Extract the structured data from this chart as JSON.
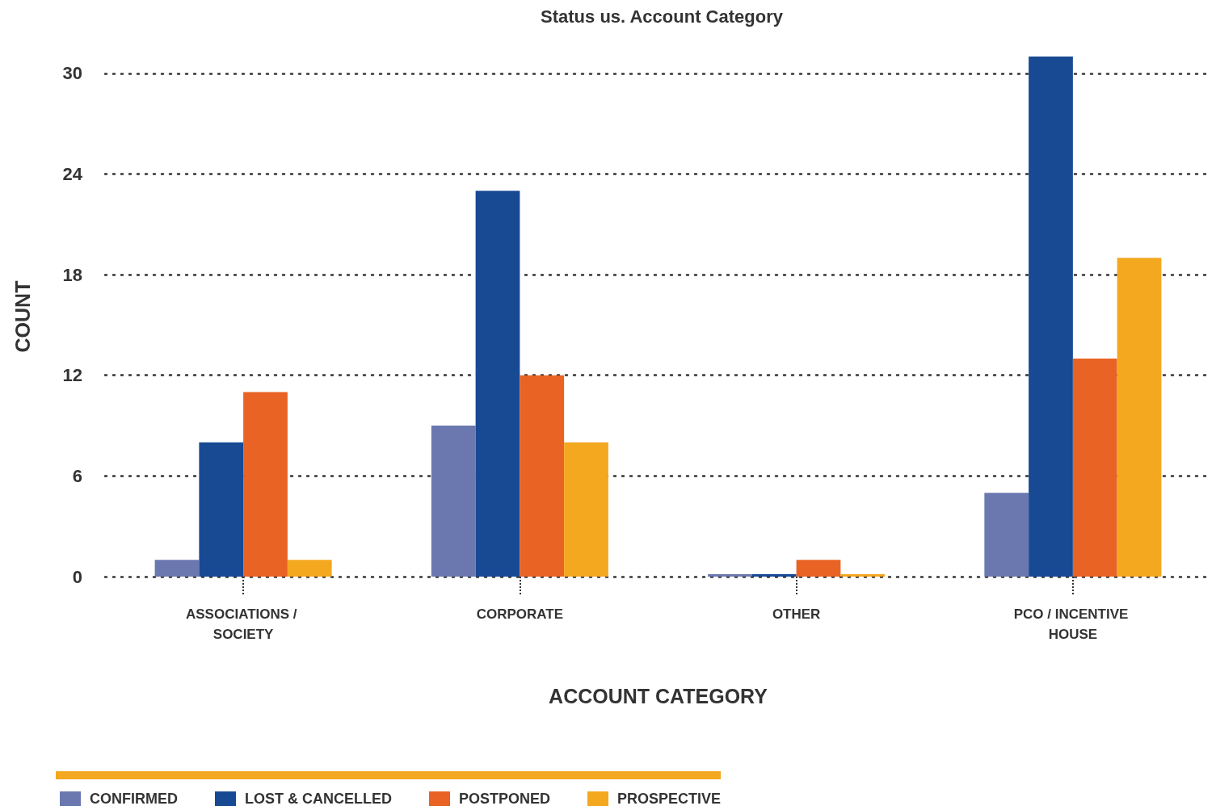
{
  "chart_data": {
    "type": "bar",
    "title": "Status us. Account Category",
    "xlabel": "ACCOUNT CATEGORY",
    "ylabel": "COUNT",
    "categories": [
      "ASSOCIATIONS / SOCIETY",
      "CORPORATE",
      "OTHER",
      "PCO / INCENTIVE HOUSE"
    ],
    "series": [
      {
        "name": "CONFIRMED",
        "color": "#6b78b0",
        "values": [
          1,
          9,
          0,
          5
        ]
      },
      {
        "name": "LOST & CANCELLED",
        "color": "#184a94",
        "values": [
          8,
          23,
          0,
          31
        ]
      },
      {
        "name": "POSTPONED",
        "color": "#e86324",
        "values": [
          11,
          12,
          1,
          13
        ]
      },
      {
        "name": "PROSPECTIVE",
        "color": "#f4a81f",
        "values": [
          1,
          8,
          0,
          19
        ]
      }
    ],
    "ylim": [
      0,
      31
    ],
    "yticks": [
      0,
      6,
      12,
      18,
      24,
      30
    ],
    "grid": "y",
    "legend": "bottom left"
  }
}
